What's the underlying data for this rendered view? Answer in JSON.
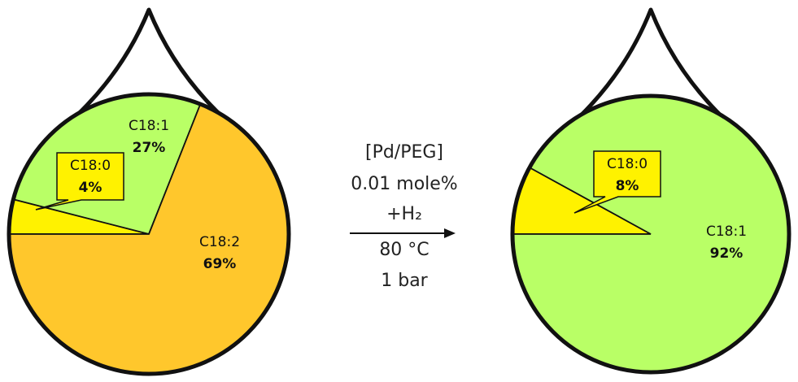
{
  "chart_data": [
    {
      "type": "pie",
      "categories": [
        "C18:0",
        "C18:1",
        "C18:2"
      ],
      "values": [
        4,
        27,
        69
      ],
      "value_labels": [
        "4%",
        "27%",
        "69%"
      ],
      "colors": [
        "#fff200",
        "#b9ff66",
        "#ffc72c"
      ]
    },
    {
      "type": "pie",
      "categories": [
        "C18:0",
        "C18:1"
      ],
      "values": [
        8,
        92
      ],
      "value_labels": [
        "8%",
        "92%"
      ],
      "colors": [
        "#fff200",
        "#b9ff66"
      ]
    }
  ],
  "conditions": [
    "[Pd/PEG]",
    "0.01 mole%",
    "+H₂",
    "80 °C",
    "1 bar"
  ]
}
